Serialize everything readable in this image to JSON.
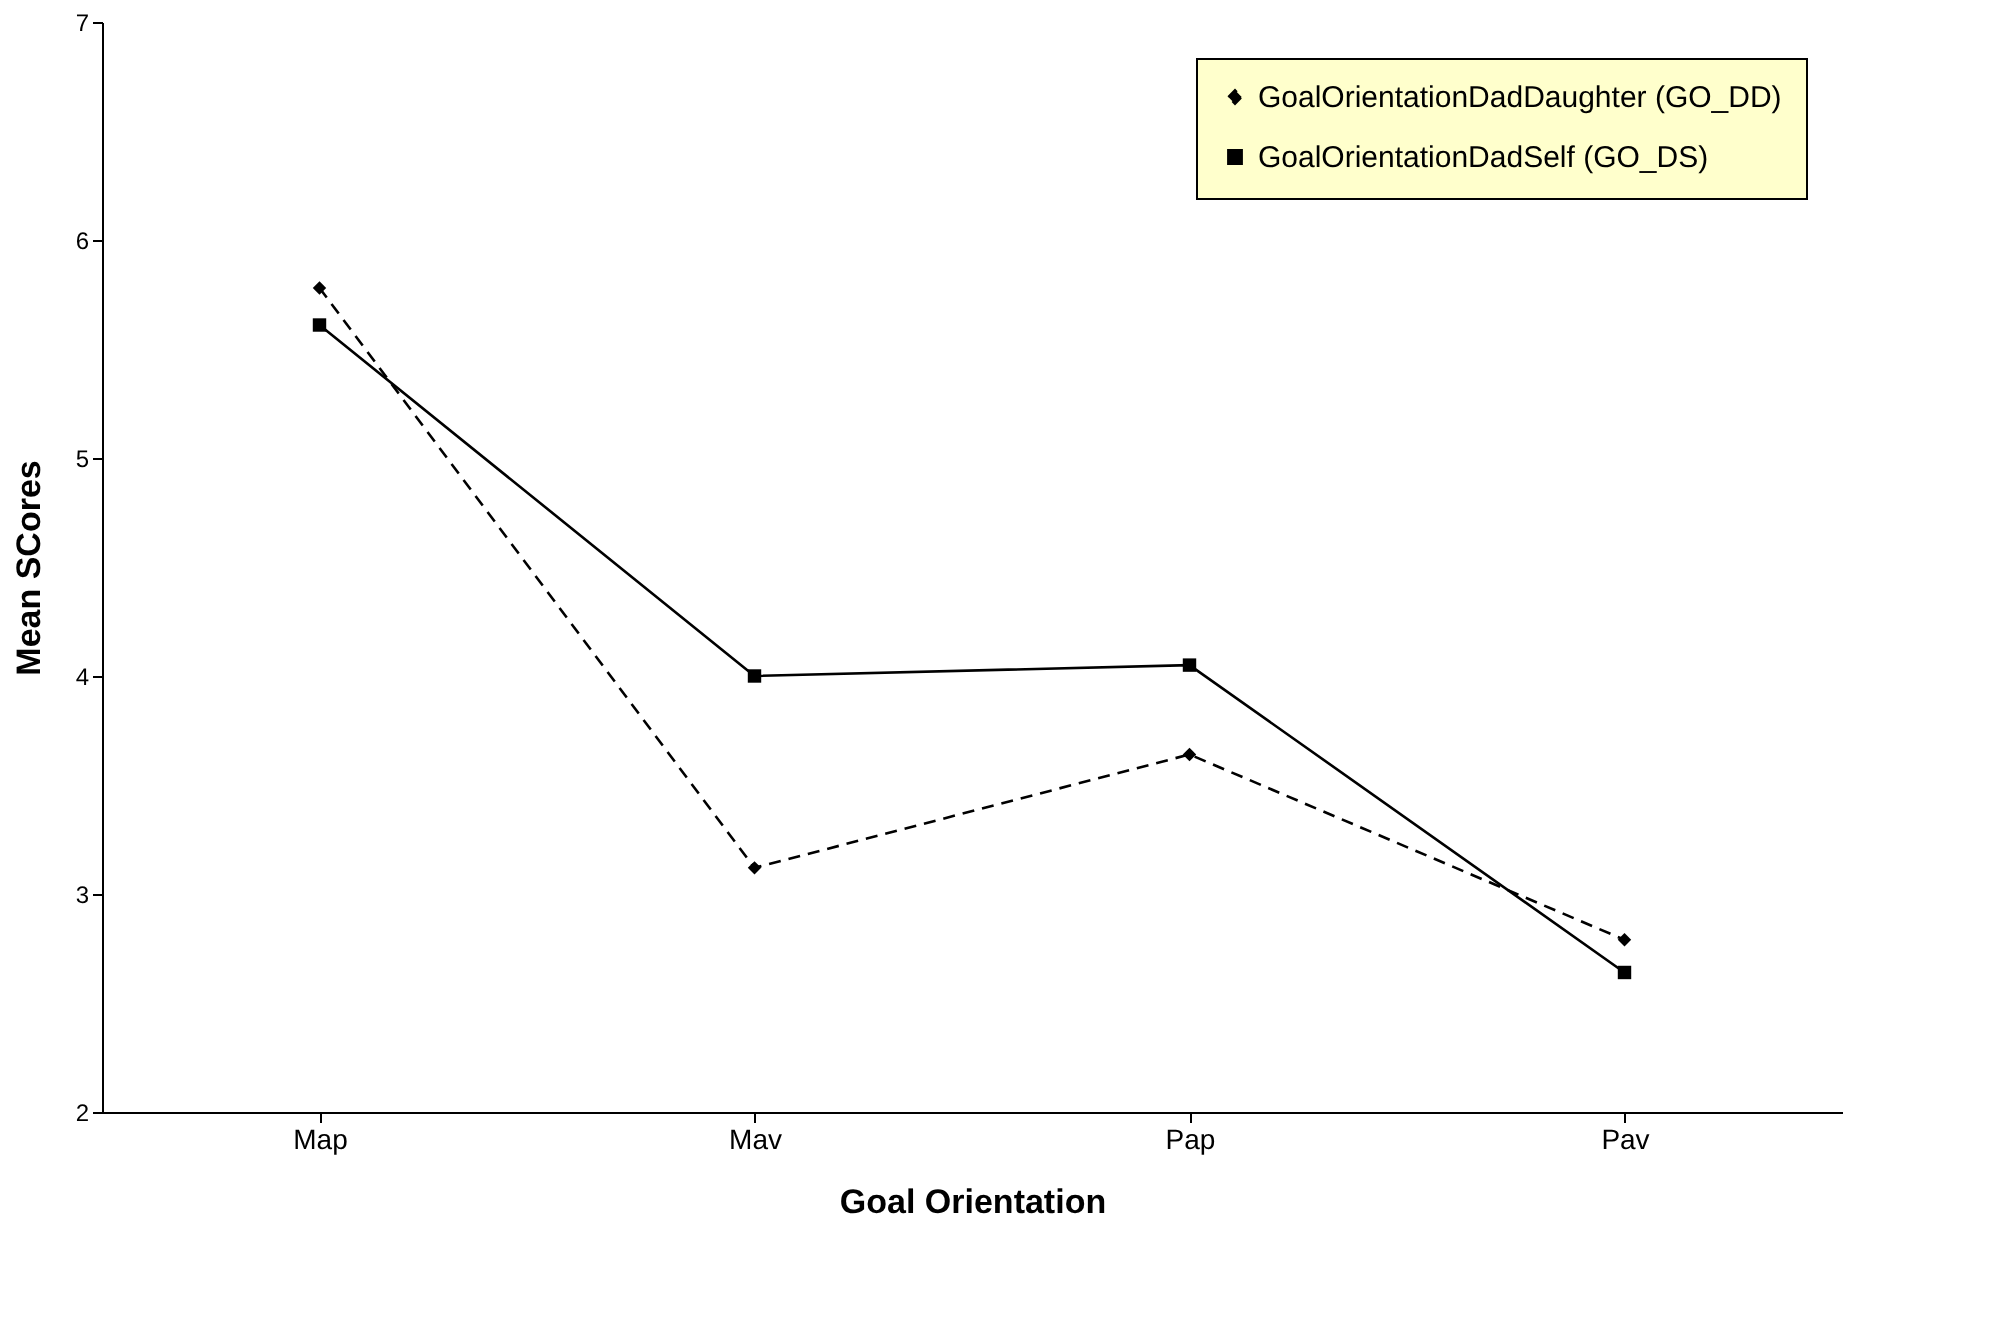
{
  "chart_data": {
    "type": "line",
    "xlabel": "Goal Orientation",
    "ylabel": "Mean SCores",
    "categories": [
      "Map",
      "Mav",
      "Pap",
      "Pav"
    ],
    "series": [
      {
        "name": "GoalOrientationDadDaughter (GO_DD)",
        "color": "#000000",
        "values": [
          5.78,
          3.12,
          3.64,
          2.79
        ],
        "marker": "diamond",
        "line_style": "dashed"
      },
      {
        "name": "GoalOrientationDadSelf (GO_DS)",
        "color": "#000000",
        "values": [
          5.61,
          4.0,
          4.05,
          2.64
        ],
        "marker": "square",
        "line_style": "solid"
      }
    ],
    "ylim": [
      2,
      7
    ],
    "yticks": [
      2,
      3,
      4,
      5,
      6,
      7
    ],
    "grid": false,
    "legend": "top right"
  }
}
